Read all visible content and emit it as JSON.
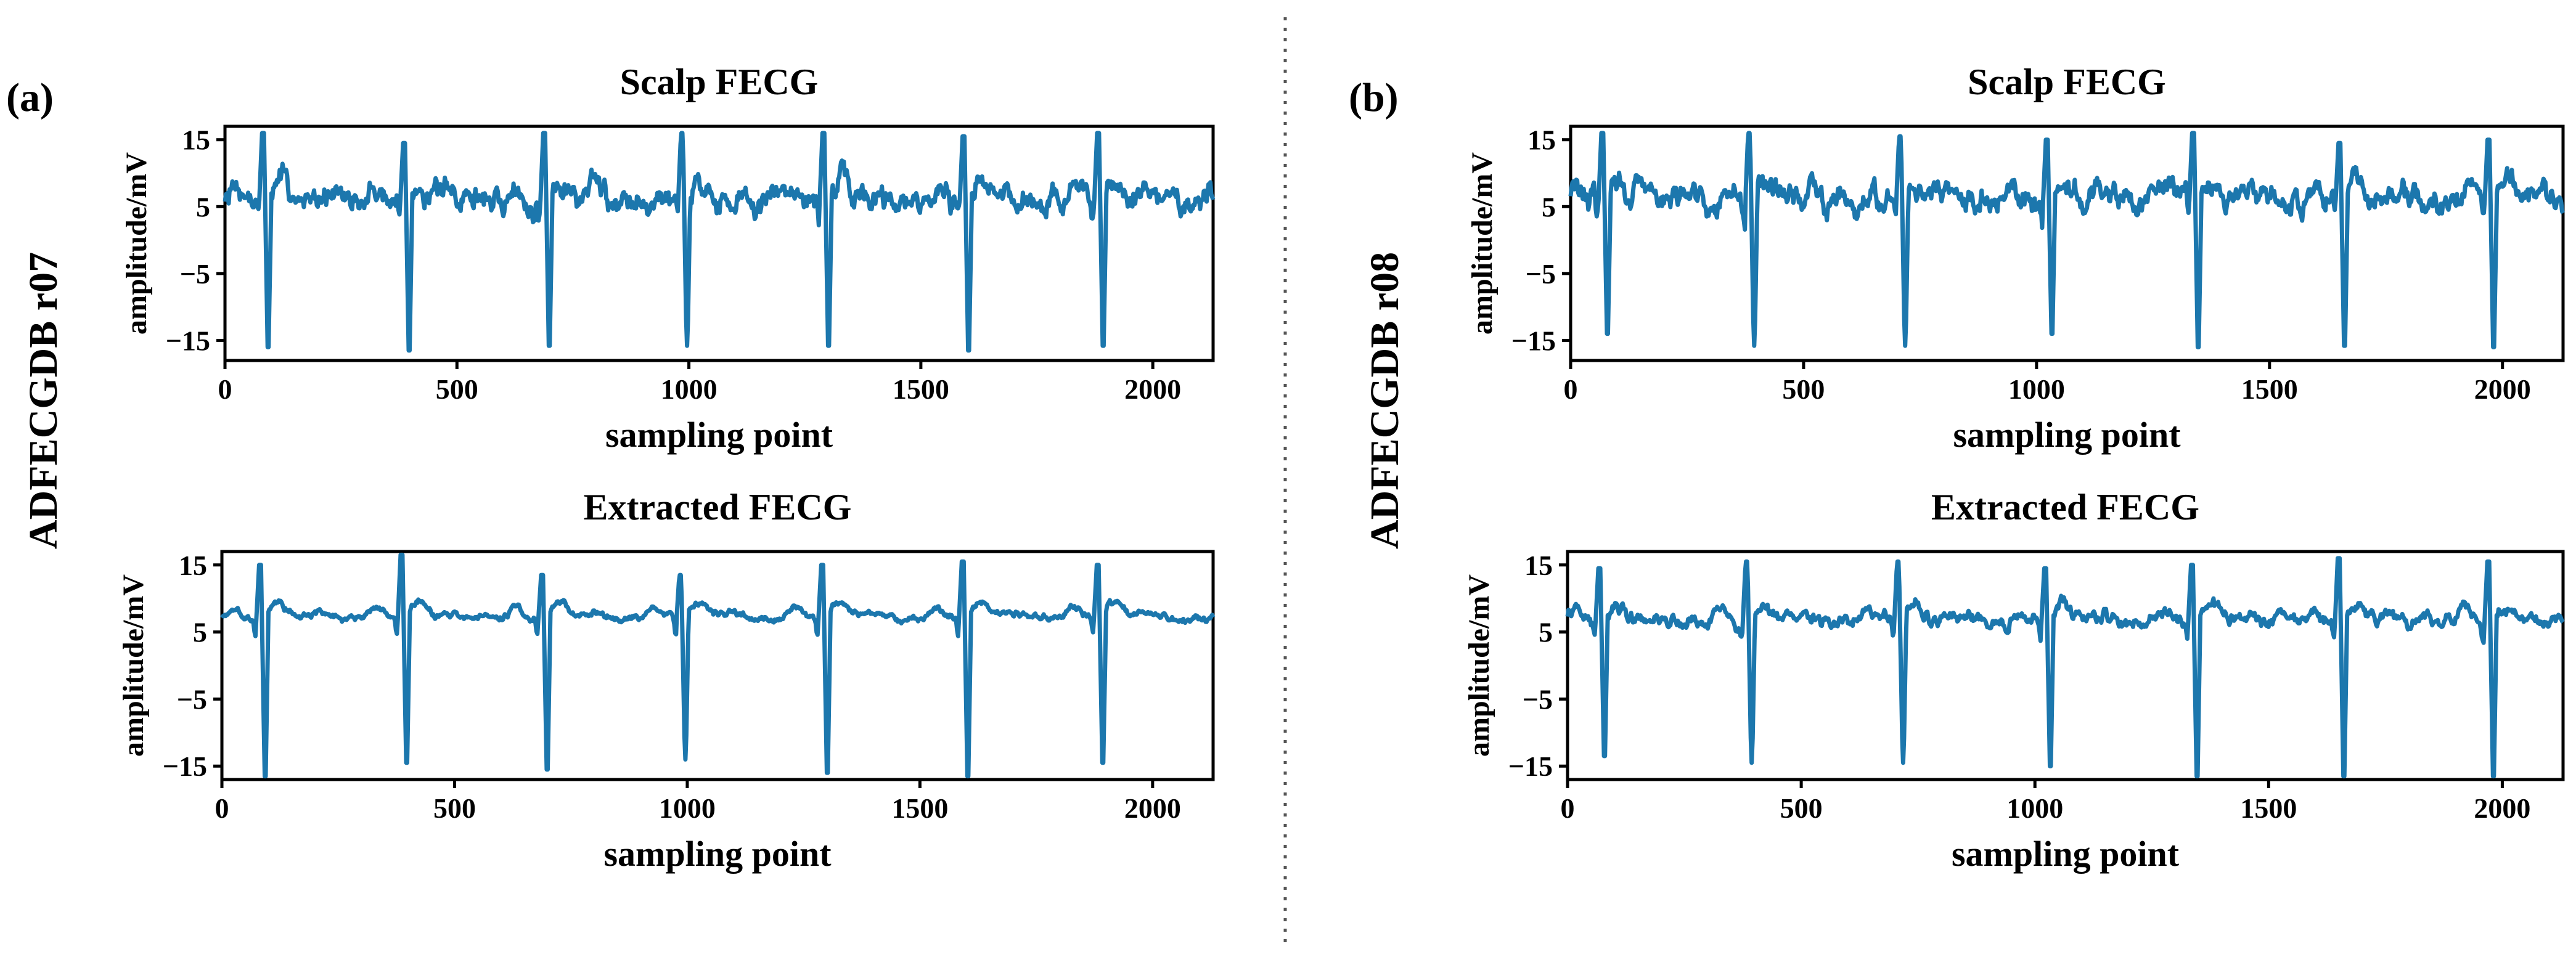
{
  "panels": [
    {
      "label": "(a)",
      "side_label": "ADFECGDB r07",
      "beats": [
        82,
        386,
        688,
        985,
        1290,
        1592,
        1882
      ],
      "charts": [
        {
          "type": "line",
          "title": "Scalp FECG",
          "xlabel": "sampling point",
          "ylabel": "amplitude/mV",
          "xlim": [
            0,
            2130
          ],
          "ylim": [
            -18,
            17
          ],
          "xticks": [
            0,
            500,
            1000,
            1500,
            2000
          ],
          "xtick_labels": [
            "0",
            "500",
            "1000",
            "1500",
            "2000"
          ],
          "yticks": [
            15,
            5,
            -5,
            -15
          ],
          "ytick_labels": [
            "15",
            "5",
            "−5",
            "−15"
          ],
          "grid": false,
          "series": [
            {
              "name": "Scalp FECG",
              "color": "#1c77ad",
              "baseline": 6,
              "peak_max": [
                16,
                14.5,
                16,
                16,
                16,
                15.5,
                16
              ],
              "peak_min": [
                -16,
                -16.5,
                -15.8,
                -15.8,
                -15.8,
                -16.5,
                -15.8
              ],
              "noise": 1.2,
              "seed": 7
            }
          ]
        },
        {
          "type": "line",
          "title": "Extracted FECG",
          "xlabel": "sampling point",
          "ylabel": "amplitude/mV",
          "xlim": [
            0,
            2130
          ],
          "ylim": [
            -17,
            17
          ],
          "xticks": [
            0,
            500,
            1000,
            1500,
            2000
          ],
          "xtick_labels": [
            "0",
            "500",
            "1000",
            "1500",
            "2000"
          ],
          "yticks": [
            15,
            5,
            -5,
            -15
          ],
          "ytick_labels": [
            "15",
            "5",
            "−5",
            "−15"
          ],
          "grid": false,
          "series": [
            {
              "name": "Extracted FECG",
              "color": "#1c77ad",
              "baseline": 7,
              "peak_max": [
                15,
                16.5,
                13.5,
                13.5,
                15,
                15.5,
                15
              ],
              "peak_min": [
                -16.5,
                -14.5,
                -15.5,
                -14,
                -16,
                -16.5,
                -14.5
              ],
              "noise": 0.3,
              "seed": 17
            }
          ]
        }
      ]
    },
    {
      "label": "(b)",
      "side_label": "ADFECGDB r08",
      "beats": [
        68,
        383,
        707,
        1022,
        1336,
        1650,
        1970
      ],
      "charts": [
        {
          "type": "line",
          "title": "Scalp FECG",
          "xlabel": "sampling point",
          "ylabel": "amplitude/mV",
          "xlim": [
            0,
            2130
          ],
          "ylim": [
            -18,
            17
          ],
          "xticks": [
            0,
            500,
            1000,
            1500,
            2000
          ],
          "xtick_labels": [
            "0",
            "500",
            "1000",
            "1500",
            "2000"
          ],
          "yticks": [
            15,
            5,
            -5,
            -15
          ],
          "ytick_labels": [
            "15",
            "5",
            "−5",
            "−15"
          ],
          "grid": false,
          "series": [
            {
              "name": "Scalp FECG",
              "color": "#1c77ad",
              "baseline": 6,
              "peak_max": [
                16,
                16,
                15.5,
                15,
                16,
                14.5,
                15
              ],
              "peak_min": [
                -14,
                -15.8,
                -15.8,
                -14,
                -16,
                -15.8,
                -16
              ],
              "noise": 1.2,
              "seed": 29
            }
          ]
        },
        {
          "type": "line",
          "title": "Extracted FECG",
          "xlabel": "sampling point",
          "ylabel": "amplitude/mV",
          "xlim": [
            0,
            2130
          ],
          "ylim": [
            -17,
            17
          ],
          "xticks": [
            0,
            500,
            1000,
            1500,
            2000
          ],
          "xtick_labels": [
            "0",
            "500",
            "1000",
            "1500",
            "2000"
          ],
          "yticks": [
            15,
            5,
            -5,
            -15
          ],
          "ytick_labels": [
            "15",
            "5",
            "−5",
            "−15"
          ],
          "grid": false,
          "series": [
            {
              "name": "Extracted FECG",
              "color": "#1c77ad",
              "baseline": 6.5,
              "peak_max": [
                14.5,
                15.5,
                15.5,
                14.5,
                15,
                16,
                15.5
              ],
              "peak_min": [
                -13.5,
                -14.5,
                -14.5,
                -15,
                -16.5,
                -16.5,
                -16.5
              ],
              "noise": 0.6,
              "seed": 41
            }
          ]
        }
      ]
    }
  ]
}
